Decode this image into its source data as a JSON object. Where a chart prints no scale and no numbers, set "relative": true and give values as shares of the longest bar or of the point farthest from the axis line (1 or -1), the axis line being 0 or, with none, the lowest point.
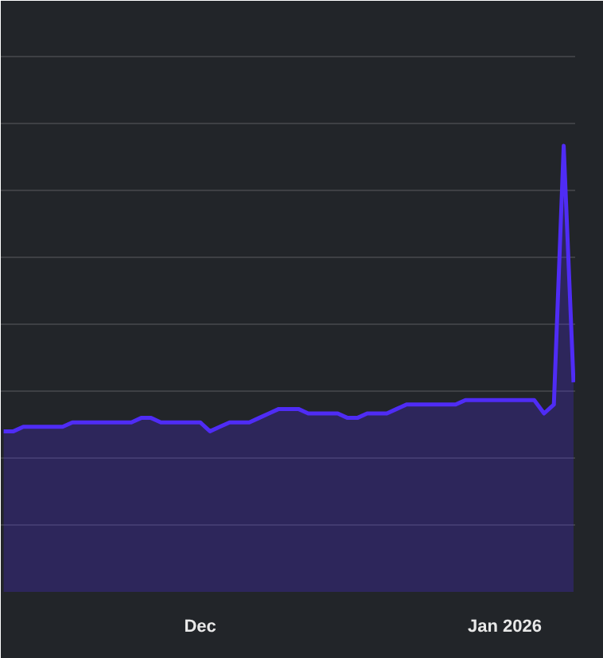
{
  "chart_data": {
    "type": "area",
    "relative": true,
    "grid": "y",
    "line_style": "solid",
    "x": [
      "2025-11-11",
      "2025-11-12",
      "2025-11-13",
      "2025-11-14",
      "2025-11-15",
      "2025-11-16",
      "2025-11-17",
      "2025-11-18",
      "2025-11-19",
      "2025-11-20",
      "2025-11-21",
      "2025-11-22",
      "2025-11-23",
      "2025-11-24",
      "2025-11-25",
      "2025-11-26",
      "2025-11-27",
      "2025-11-28",
      "2025-11-29",
      "2025-11-30",
      "2025-12-01",
      "2025-12-02",
      "2025-12-03",
      "2025-12-04",
      "2025-12-05",
      "2025-12-06",
      "2025-12-07",
      "2025-12-08",
      "2025-12-09",
      "2025-12-10",
      "2025-12-11",
      "2025-12-12",
      "2025-12-13",
      "2025-12-14",
      "2025-12-15",
      "2025-12-16",
      "2025-12-17",
      "2025-12-18",
      "2025-12-19",
      "2025-12-20",
      "2025-12-21",
      "2025-12-22",
      "2025-12-23",
      "2025-12-24",
      "2025-12-25",
      "2025-12-26",
      "2025-12-27",
      "2025-12-28",
      "2025-12-29",
      "2025-12-30",
      "2025-12-31",
      "2026-01-01",
      "2026-01-02",
      "2026-01-03",
      "2026-01-04",
      "2026-01-05",
      "2026-01-06",
      "2026-01-07",
      "2026-01-08"
    ],
    "series": [
      {
        "color": "#4f2cf5",
        "values": [
          0.36,
          0.36,
          0.37,
          0.37,
          0.37,
          0.37,
          0.37,
          0.38,
          0.38,
          0.38,
          0.38,
          0.38,
          0.38,
          0.38,
          0.39,
          0.39,
          0.38,
          0.38,
          0.38,
          0.38,
          0.38,
          0.36,
          0.37,
          0.38,
          0.38,
          0.38,
          0.39,
          0.4,
          0.41,
          0.41,
          0.41,
          0.4,
          0.4,
          0.4,
          0.4,
          0.39,
          0.39,
          0.4,
          0.4,
          0.4,
          0.41,
          0.42,
          0.42,
          0.42,
          0.42,
          0.42,
          0.42,
          0.43,
          0.43,
          0.43,
          0.43,
          0.43,
          0.43,
          0.43,
          0.43,
          0.4,
          0.42,
          1,
          0.47
        ]
      }
    ],
    "xlim": [
      "2025-11-10T17:00",
      "2026-01-08T04:00"
    ],
    "xticks": [
      {
        "value": "2025-12-01",
        "label": "Dec"
      },
      {
        "value": "2026-01-01",
        "label": "Jan 2026"
      }
    ]
  }
}
